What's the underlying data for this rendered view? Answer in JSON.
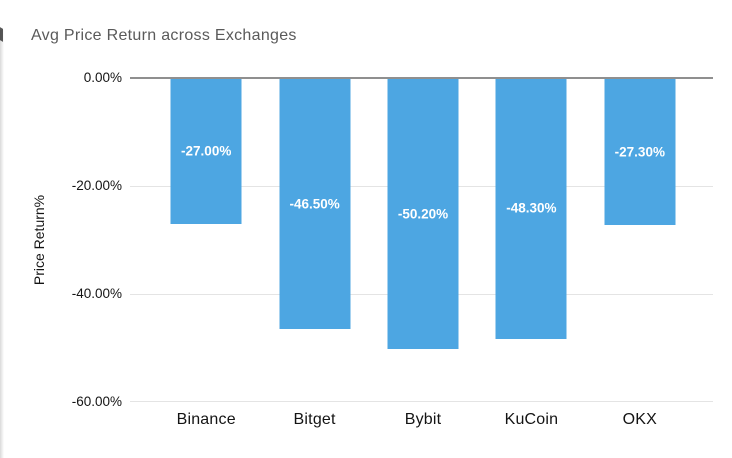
{
  "chart_data": {
    "type": "bar",
    "title": "Avg Price Return across Exchanges",
    "categories": [
      "Binance",
      "Bitget",
      "Bybit",
      "KuCoin",
      "OKX"
    ],
    "values": [
      -27.0,
      -46.5,
      -50.2,
      -48.3,
      -27.3
    ],
    "bar_labels": [
      "-27.00%",
      "-46.50%",
      "-50.20%",
      "-48.30%",
      "-27.30%"
    ],
    "xlabel": "",
    "ylabel": "Price Return%",
    "ylim": [
      -60,
      0
    ],
    "yticks": [
      0,
      -20,
      -40,
      -60
    ],
    "ytick_labels": [
      "0.00%",
      "-20.00%",
      "-40.00%",
      "-60.00%"
    ],
    "grid": true,
    "legend": false,
    "colors": {
      "bar": "#4DA6E2",
      "bar_label": "#ffffff",
      "title": "#5a5a5a",
      "axis_text": "#141414",
      "gridline": "#e4e4e4",
      "zero_line": "#8f8f8f",
      "background": "#ffffff"
    }
  }
}
